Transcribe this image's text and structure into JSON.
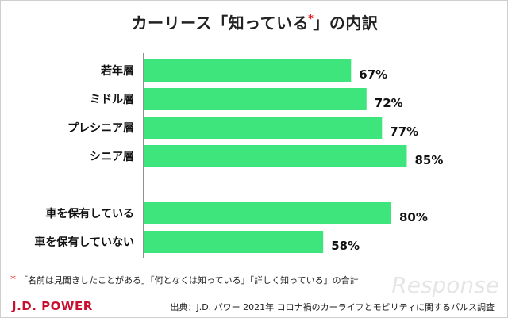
{
  "page": {
    "title_before": "カーリース「知っている",
    "title_star": "*",
    "title_after": "」の内訳",
    "footnote_star": "*",
    "footnote": "「名前は見聞きしたことがある」「何となくは知っている」「詳しく知っている」の合計",
    "logo": "J.D. POWER",
    "source": "出典：J.D. パワー 2021年 コロナ禍のカーライフとモビリティに関するパルス調査",
    "watermark": "Response"
  },
  "colors": {
    "bar": "#3de57c",
    "axis": "#222222",
    "star": "#e01d1d",
    "brand": "#c8102e"
  },
  "chart_data": {
    "type": "bar",
    "orientation": "horizontal",
    "title": "カーリース「知っている*」の内訳",
    "categories": [
      "若年層",
      "ミドル層",
      "プレシニア層",
      "シニア層",
      "車を保有している",
      "車を保有していない"
    ],
    "values": [
      67,
      72,
      77,
      85,
      80,
      58
    ],
    "value_labels": [
      "67%",
      "72%",
      "77%",
      "85%",
      "80%",
      "58%"
    ],
    "groups": [
      [
        0,
        1,
        2,
        3
      ],
      [
        4,
        5
      ]
    ],
    "xlim": [
      0,
      100
    ],
    "unit": "%",
    "grid": false,
    "legend": "none"
  }
}
